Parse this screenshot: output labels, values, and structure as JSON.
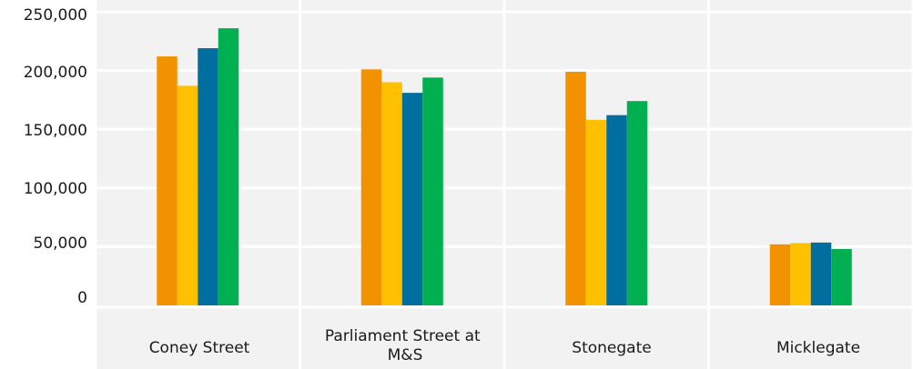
{
  "chart_data": {
    "type": "bar",
    "categories": [
      "Coney Street",
      "Parliament Street at M&S",
      "Stonegate",
      "Micklegate"
    ],
    "series": [
      {
        "color": "#f39200",
        "values": [
          212000,
          201000,
          199000,
          52000
        ]
      },
      {
        "color": "#ffc000",
        "values": [
          187000,
          190000,
          158000,
          53000
        ]
      },
      {
        "color": "#006f9f",
        "values": [
          219000,
          181000,
          162000,
          53500
        ]
      },
      {
        "color": "#00b050",
        "values": [
          236000,
          194000,
          174000,
          48000
        ]
      }
    ],
    "yticks": [
      "0",
      "50,000",
      "100,000",
      "150,000",
      "200,000",
      "250,000"
    ],
    "ylim": [
      0,
      260000
    ],
    "title": "",
    "xlabel": "",
    "ylabel": "",
    "grid": true,
    "legend": "none"
  }
}
